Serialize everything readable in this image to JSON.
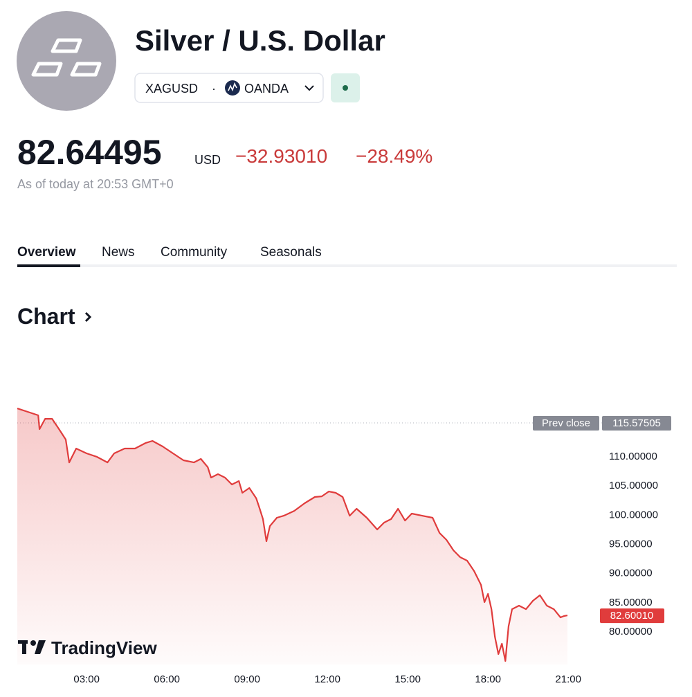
{
  "header": {
    "title": "Silver / U.S. Dollar",
    "symbol": "XAGUSD",
    "separator": "·",
    "exchange": "OANDA"
  },
  "quote": {
    "price": "82.64495",
    "currency": "USD",
    "change": "−32.93010",
    "change_percent": "−28.49%",
    "as_of": "As of today at 20:53 GMT+0"
  },
  "tabs": [
    "Overview",
    "News",
    "Community",
    "Seasonals"
  ],
  "section_title": "Chart",
  "chart_data": {
    "type": "line",
    "branding": "TradingView",
    "color": "#e03c3c",
    "x": [
      0.41,
      0.8,
      1.19,
      1.24,
      1.45,
      1.71,
      1.97,
      2.22,
      2.35,
      2.61,
      3.0,
      3.39,
      3.78,
      4.03,
      4.42,
      4.81,
      5.2,
      5.46,
      5.84,
      6.23,
      6.62,
      7.01,
      7.27,
      7.53,
      7.65,
      7.91,
      8.17,
      8.43,
      8.69,
      8.82,
      9.08,
      9.34,
      9.47,
      9.59,
      9.72,
      9.85,
      10.11,
      10.37,
      10.76,
      11.15,
      11.53,
      11.79,
      12.05,
      12.31,
      12.57,
      12.83,
      13.09,
      13.47,
      13.86,
      14.12,
      14.38,
      14.64,
      14.9,
      15.15,
      15.54,
      15.93,
      16.19,
      16.45,
      16.71,
      16.96,
      17.22,
      17.48,
      17.74,
      17.87,
      18.0,
      18.13,
      18.26,
      18.39,
      18.52,
      18.65,
      18.77,
      18.9,
      19.16,
      19.42,
      19.68,
      19.94,
      20.2,
      20.46,
      20.71,
      20.84,
      20.97
    ],
    "values": [
      118.06,
      117.47,
      116.88,
      114.51,
      116.28,
      116.28,
      114.51,
      112.73,
      108.81,
      111.19,
      110.36,
      109.76,
      108.81,
      110.36,
      111.19,
      111.19,
      112.13,
      112.49,
      111.54,
      110.36,
      109.17,
      108.81,
      109.41,
      107.98,
      106.21,
      106.8,
      106.21,
      105.02,
      105.61,
      103.6,
      104.43,
      102.65,
      100.87,
      99.1,
      95.3,
      97.9,
      99.33,
      99.68,
      100.51,
      101.82,
      102.89,
      103.0,
      103.83,
      103.6,
      102.89,
      99.68,
      100.87,
      99.33,
      97.31,
      98.5,
      99.1,
      100.87,
      98.85,
      100.04,
      99.68,
      99.33,
      96.72,
      95.53,
      93.75,
      92.57,
      91.98,
      90.2,
      87.83,
      84.86,
      86.28,
      83.67,
      78.93,
      75.97,
      77.75,
      74.78,
      80.71,
      83.67,
      84.27,
      83.67,
      85.1,
      86.05,
      84.27,
      83.67,
      82.25,
      82.49,
      82.6
    ],
    "xlim": [
      0.41,
      22.03
    ],
    "ylim": [
      74.19,
      118.66
    ],
    "xticks": [
      {
        "value": 3,
        "label": "03:00"
      },
      {
        "value": 6,
        "label": "06:00"
      },
      {
        "value": 9,
        "label": "09:00"
      },
      {
        "value": 12,
        "label": "12:00"
      },
      {
        "value": 15,
        "label": "15:00"
      },
      {
        "value": 18,
        "label": "18:00"
      },
      {
        "value": 21,
        "label": "21:00"
      }
    ],
    "yticks": [
      {
        "value": 80,
        "label": "80.00000"
      },
      {
        "value": 85,
        "label": "85.00000"
      },
      {
        "value": 90,
        "label": "90.00000"
      },
      {
        "value": 95,
        "label": "95.00000"
      },
      {
        "value": 100,
        "label": "100.00000"
      },
      {
        "value": 105,
        "label": "105.00000"
      },
      {
        "value": 110,
        "label": "110.00000"
      }
    ],
    "prev_close": {
      "name": "Prev close",
      "value": 115.57505
    },
    "last_value": {
      "value": 82.6001,
      "label": "82.60010"
    }
  }
}
